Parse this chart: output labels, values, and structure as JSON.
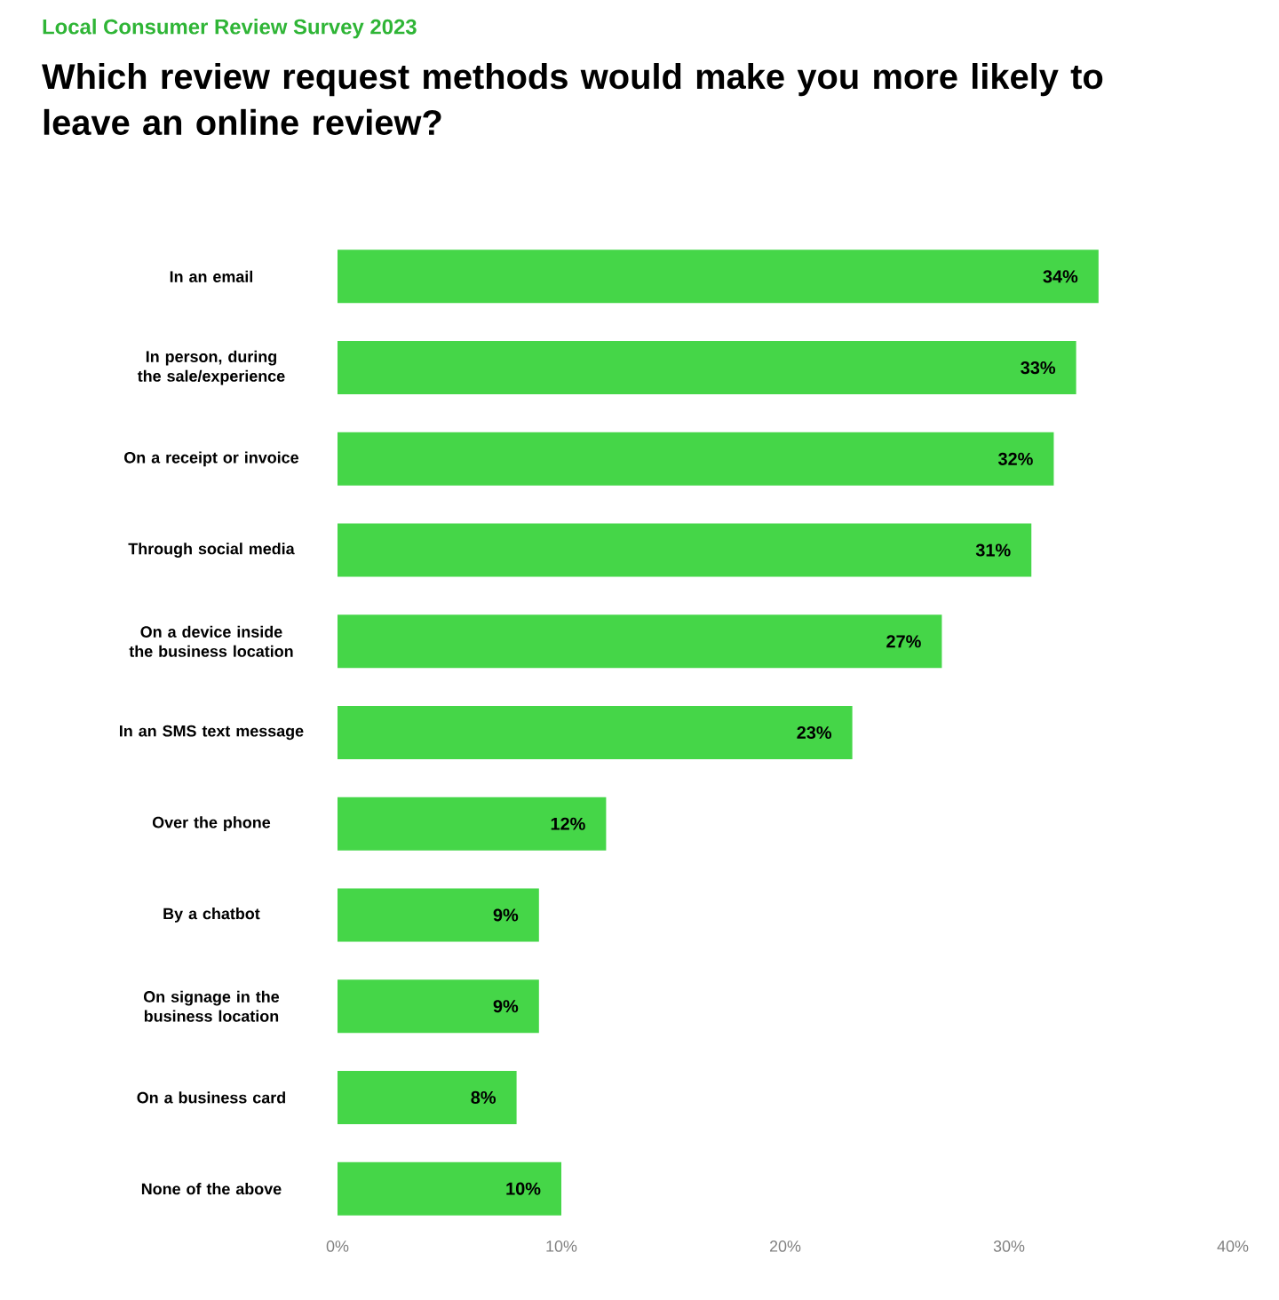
{
  "chart_data": {
    "type": "bar",
    "orientation": "horizontal",
    "title": "Which review request methods would make you more likely to leave an online review?",
    "subtitle": "Local Consumer Review Survey 2023",
    "categories": [
      "In an email",
      "In person, during the sale/experience",
      "On a receipt or invoice",
      "Through social media",
      "On a device inside the business location",
      "In an SMS text message",
      "Over the phone",
      "By a chatbot",
      "On signage in the business location",
      "On a business card",
      "None of the above"
    ],
    "values": [
      34,
      33,
      32,
      31,
      27,
      23,
      12,
      9,
      9,
      8,
      10
    ],
    "value_labels": [
      "34%",
      "33%",
      "32%",
      "31%",
      "27%",
      "23%",
      "12%",
      "9%",
      "9%",
      "8%",
      "10%"
    ],
    "color": "#45d648",
    "xlim": [
      0,
      40
    ],
    "xticks": [
      {
        "value": 0,
        "label": "0%"
      },
      {
        "value": 10,
        "label": "10%"
      },
      {
        "value": 20,
        "label": "20%"
      },
      {
        "value": 30,
        "label": "30%"
      },
      {
        "value": 40,
        "label": "40%"
      }
    ]
  }
}
